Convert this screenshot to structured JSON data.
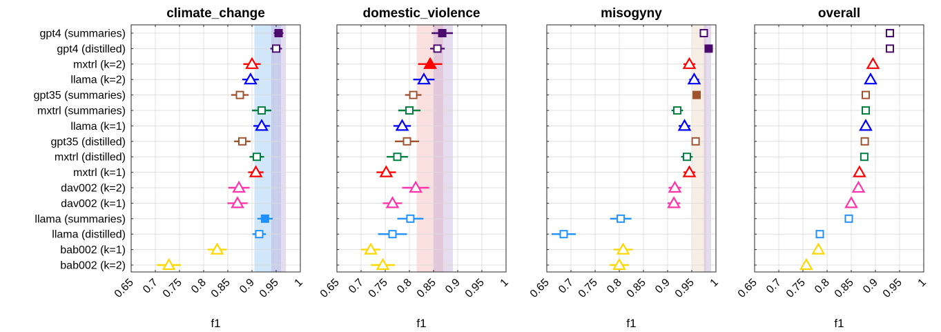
{
  "chart_data": {
    "type": "scatter",
    "models": [
      "gpt4 (summaries)",
      "gpt4 (distilled)",
      "mxtrl (k=2)",
      "llama (k=2)",
      "gpt35 (summaries)",
      "mxtrl (summaries)",
      "llama (k=1)",
      "gpt35 (distilled)",
      "mxtrl (distilled)",
      "mxtrl (k=1)",
      "dav002 (k=2)",
      "dav002 (k=1)",
      "llama (summaries)",
      "llama (distilled)",
      "bab002 (k=1)",
      "bab002 (k=2)"
    ],
    "markers": [
      "square",
      "square",
      "triangle",
      "triangle",
      "square",
      "square",
      "triangle",
      "square",
      "square",
      "triangle",
      "triangle",
      "triangle",
      "square",
      "square",
      "triangle",
      "triangle"
    ],
    "colors": [
      "#4B0A6E",
      "#4B0A6E",
      "#FF0000",
      "#0000FF",
      "#A0522D",
      "#008040",
      "#0000FF",
      "#A0522D",
      "#008040",
      "#FF0000",
      "#FF33AA",
      "#FF33AA",
      "#1E90FF",
      "#1E90FF",
      "#FFD700",
      "#FFD700"
    ],
    "xlabel": "f1",
    "xlim": [
      0.65,
      1.0
    ],
    "xticks": [
      "0.65",
      "0.7",
      "0.75",
      "0.8",
      "0.85",
      "0.9",
      "0.95",
      "1"
    ],
    "grid": true,
    "panels": [
      {
        "title": "climate_change",
        "values": [
          0.955,
          0.95,
          0.9,
          0.897,
          0.875,
          0.92,
          0.92,
          0.88,
          0.91,
          0.908,
          0.873,
          0.87,
          0.927,
          0.915,
          0.828,
          0.728
        ],
        "errors": [
          0.01,
          0.012,
          0.018,
          0.017,
          0.018,
          0.02,
          0.017,
          0.017,
          0.015,
          0.016,
          0.022,
          0.021,
          0.016,
          0.014,
          0.02,
          0.025
        ],
        "filled": [
          true,
          false,
          false,
          false,
          false,
          false,
          false,
          false,
          false,
          false,
          false,
          false,
          true,
          false,
          false,
          false
        ],
        "bands": [
          {
            "color": "#7EB8F2",
            "range": [
              0.905,
              0.96
            ]
          },
          {
            "color": "#B79AD4",
            "range": [
              0.94,
              0.97
            ]
          }
        ]
      },
      {
        "title": "domestic_violence",
        "values": [
          0.868,
          0.858,
          0.843,
          0.83,
          0.808,
          0.8,
          0.785,
          0.795,
          0.775,
          0.752,
          0.813,
          0.765,
          0.802,
          0.765,
          0.72,
          0.745
        ],
        "errors": [
          0.022,
          0.015,
          0.025,
          0.022,
          0.017,
          0.023,
          0.018,
          0.025,
          0.022,
          0.02,
          0.028,
          0.02,
          0.027,
          0.03,
          0.02,
          0.025
        ],
        "filled": [
          true,
          false,
          true,
          false,
          false,
          false,
          false,
          false,
          false,
          false,
          false,
          false,
          false,
          false,
          false,
          false
        ],
        "bands": [
          {
            "color": "#F4A6A6",
            "range": [
              0.815,
              0.87
            ]
          },
          {
            "color": "#B79AD4",
            "range": [
              0.85,
              0.89
            ]
          }
        ]
      },
      {
        "title": "misogyny",
        "values": [
          0.975,
          0.985,
          0.945,
          0.955,
          0.96,
          0.92,
          0.935,
          0.958,
          0.94,
          0.945,
          0.915,
          0.913,
          0.803,
          0.685,
          0.808,
          0.8
        ],
        "errors": [
          0.004,
          0.004,
          0.012,
          0.01,
          0.006,
          0.012,
          0.012,
          0.007,
          0.012,
          0.012,
          0.013,
          0.013,
          0.022,
          0.025,
          0.02,
          0.02
        ],
        "filled": [
          false,
          true,
          false,
          false,
          true,
          false,
          false,
          false,
          false,
          false,
          false,
          false,
          false,
          false,
          false,
          false
        ],
        "bands": [
          {
            "color": "#E8CDB4",
            "range": [
              0.95,
              0.98
            ]
          },
          {
            "color": "#B79AD4",
            "range": [
              0.975,
              0.99
            ]
          }
        ]
      },
      {
        "title": "overall",
        "values": [
          0.93,
          0.93,
          0.895,
          0.89,
          0.88,
          0.88,
          0.88,
          0.878,
          0.877,
          0.867,
          0.865,
          0.85,
          0.845,
          0.785,
          0.782,
          0.757
        ],
        "errors": [
          0,
          0,
          0,
          0,
          0,
          0,
          0,
          0,
          0,
          0,
          0,
          0,
          0,
          0,
          0,
          0
        ],
        "filled": [
          false,
          false,
          false,
          false,
          false,
          false,
          false,
          false,
          false,
          false,
          false,
          false,
          false,
          false,
          false,
          false
        ],
        "bands": []
      }
    ]
  }
}
